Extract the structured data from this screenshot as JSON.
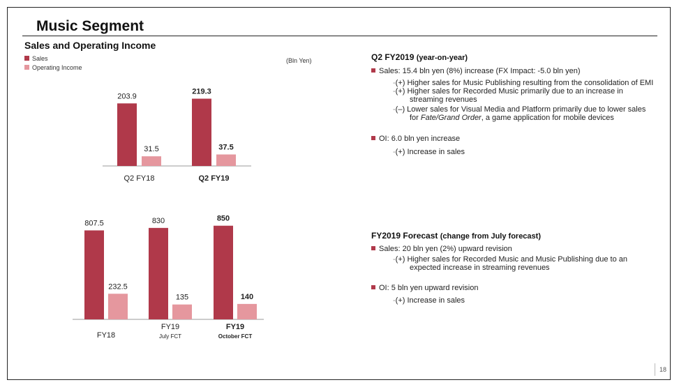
{
  "slide": {
    "title": "Music Segment",
    "section_title": "Sales and Operating Income",
    "unit": "(Bln Yen)",
    "legend": [
      {
        "label": "Sales",
        "color": "#b0394a"
      },
      {
        "label": "Operating Income",
        "color": "#e5979e"
      }
    ],
    "page_number": "18"
  },
  "chart_data": [
    {
      "type": "bar",
      "categories": [
        "Q2 FY18",
        "Q2 FY19"
      ],
      "series": [
        {
          "name": "Sales",
          "values": [
            203.9,
            219.3
          ],
          "labels": [
            "203.9",
            "219.3"
          ]
        },
        {
          "name": "Operating Income",
          "values": [
            31.5,
            37.5
          ],
          "labels": [
            "31.5",
            "37.5"
          ]
        }
      ],
      "unit": "Bln Yen"
    },
    {
      "type": "bar",
      "categories": [
        "FY18",
        "FY19",
        "FY19"
      ],
      "category_sublabels": [
        "",
        "July FCT",
        "October FCT"
      ],
      "series": [
        {
          "name": "Sales",
          "values": [
            807.5,
            830,
            850
          ],
          "labels": [
            "807.5",
            "830",
            "850"
          ]
        },
        {
          "name": "Operating Income",
          "values": [
            232.5,
            135,
            140
          ],
          "labels": [
            "232.5",
            "135",
            "140"
          ]
        }
      ],
      "unit": "Bln Yen"
    }
  ],
  "q2": {
    "heading": "Q2 FY2019",
    "heading_sub": "(year-on-year)",
    "sales": {
      "text": "Sales: 15.4 bln yen (8%) increase (FX Impact: -5.0 bln yen)",
      "items": [
        {
          "lead": "-",
          "line1": "(+) Higher sales for Music Publishing resulting from the consolidation of EMI",
          "line2": ""
        },
        {
          "lead": "-",
          "line1": "(+) Higher sales for Recorded Music primarily due to an increase in",
          "line2": "streaming revenues"
        },
        {
          "lead": "-",
          "line1": "(–) Lower sales for Visual Media and Platform primarily due to lower sales",
          "line2_pre": "for ",
          "line2_italic": "Fate/Grand Order",
          "line2_post": ", a game application for mobile devices"
        }
      ]
    },
    "oi": {
      "text": "OI: 6.0 bln yen increase",
      "items": [
        {
          "lead": "-",
          "line1": "(+) Increase in sales"
        }
      ]
    }
  },
  "forecast": {
    "heading": "FY2019 Forecast",
    "heading_sub": "(change from July forecast)",
    "sales": {
      "text": "Sales: 20 bln yen (2%) upward revision",
      "items": [
        {
          "lead": "-",
          "line1": "(+) Higher sales for Recorded Music and Music Publishing due to an",
          "line2": "expected increase in streaming revenues"
        }
      ]
    },
    "oi": {
      "text": "OI: 5 bln yen upward revision",
      "items": [
        {
          "lead": "-",
          "line1": "(+) Increase in sales"
        }
      ]
    }
  }
}
